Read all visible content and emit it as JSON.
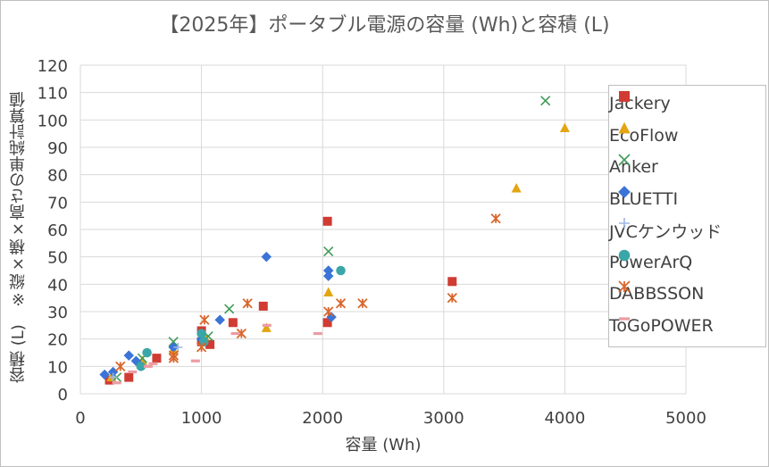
{
  "chart_data": {
    "type": "scatter",
    "title": "【2025年】ポータブル電源の容量 (Wh)と容積 (L)",
    "xlabel": "容量 (Wh)",
    "ylabel": "容積 (L)　※縦×横×高さの単純計算値",
    "xlim": [
      0,
      5000
    ],
    "ylim": [
      0,
      120
    ],
    "x_ticks": [
      "0",
      "1000",
      "2000",
      "3000",
      "4000",
      "5000"
    ],
    "y_ticks": [
      "0",
      "10",
      "20",
      "30",
      "40",
      "50",
      "60",
      "70",
      "80",
      "90",
      "100",
      "110",
      "120"
    ],
    "grid": true,
    "legend_position": "right",
    "series": [
      {
        "name": "Jackery",
        "marker": "square",
        "color": "#d03b32",
        "points": [
          [
            240,
            5
          ],
          [
            400,
            6
          ],
          [
            630,
            13
          ],
          [
            1000,
            23
          ],
          [
            1000,
            19
          ],
          [
            1070,
            18
          ],
          [
            1260,
            26
          ],
          [
            1510,
            32
          ],
          [
            2040,
            63
          ],
          [
            2040,
            26
          ],
          [
            3070,
            41
          ]
        ]
      },
      {
        "name": "EcoFlow",
        "marker": "triangle",
        "color": "#e3a512",
        "points": [
          [
            256,
            6
          ],
          [
            512,
            12
          ],
          [
            768,
            16
          ],
          [
            1024,
            21
          ],
          [
            1536,
            24
          ],
          [
            2048,
            37
          ],
          [
            3600,
            75
          ],
          [
            4000,
            97
          ]
        ]
      },
      {
        "name": "Anker",
        "marker": "x",
        "color": "#3f9b57",
        "points": [
          [
            300,
            6
          ],
          [
            512,
            13
          ],
          [
            768,
            19
          ],
          [
            1056,
            21
          ],
          [
            1229,
            31
          ],
          [
            2048,
            52
          ],
          [
            3840,
            107
          ]
        ]
      },
      {
        "name": "BLUETTI",
        "marker": "diamond",
        "color": "#3b74d6",
        "points": [
          [
            200,
            7
          ],
          [
            270,
            8
          ],
          [
            400,
            14
          ],
          [
            460,
            12
          ],
          [
            768,
            17
          ],
          [
            1000,
            20
          ],
          [
            1152,
            27
          ],
          [
            1536,
            50
          ],
          [
            2048,
            45
          ],
          [
            2048,
            43
          ],
          [
            2073,
            28
          ]
        ]
      },
      {
        "name": "JVCケンウッド",
        "marker": "plus",
        "color": "#9fb6e3",
        "points": [
          [
            270,
            6
          ],
          [
            500,
            10
          ],
          [
            806,
            17
          ]
        ]
      },
      {
        "name": "PowerArQ",
        "marker": "circle",
        "color": "#3aa6a8",
        "points": [
          [
            500,
            10
          ],
          [
            550,
            15
          ],
          [
            1000,
            22
          ],
          [
            1020,
            19
          ],
          [
            2150,
            45
          ]
        ]
      },
      {
        "name": "DABBSSON",
        "marker": "asterisk",
        "color": "#d9662b",
        "points": [
          [
            330,
            10
          ],
          [
            770,
            14
          ],
          [
            770,
            13
          ],
          [
            1000,
            17
          ],
          [
            1024,
            27
          ],
          [
            1330,
            22
          ],
          [
            1380,
            33
          ],
          [
            2048,
            30
          ],
          [
            2150,
            33
          ],
          [
            2330,
            33
          ],
          [
            3070,
            35
          ],
          [
            3430,
            64
          ]
        ]
      },
      {
        "name": "ToGoPOWER",
        "marker": "dash",
        "color": "#ec9ba3",
        "points": [
          [
            300,
            4
          ],
          [
            430,
            8
          ],
          [
            560,
            10
          ],
          [
            600,
            11
          ],
          [
            950,
            12
          ],
          [
            1280,
            22
          ],
          [
            1540,
            25
          ],
          [
            1960,
            22
          ]
        ]
      }
    ]
  }
}
